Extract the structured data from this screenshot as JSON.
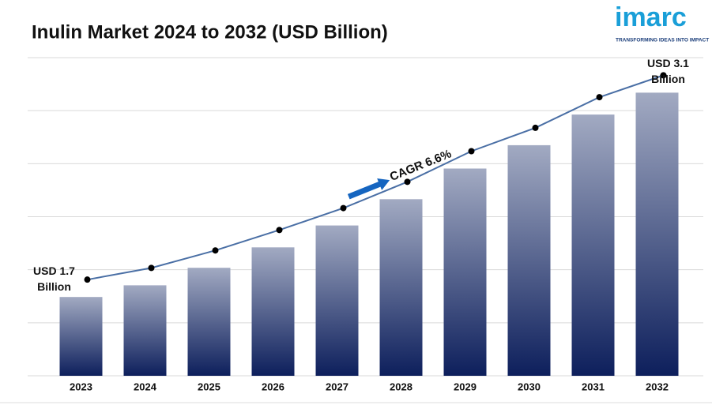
{
  "chart_data": {
    "type": "bar",
    "title": "Inulin Market 2024 to 2032 (USD Billion)",
    "categories": [
      "2023",
      "2024",
      "2025",
      "2026",
      "2027",
      "2028",
      "2029",
      "2030",
      "2031",
      "2032"
    ],
    "values": [
      1.7,
      1.78,
      1.9,
      2.04,
      2.19,
      2.37,
      2.58,
      2.74,
      2.95,
      3.1
    ],
    "color": "#0d1f5c",
    "line_color": "#4a6fa5",
    "ylim": [
      1.16,
      3.34
    ],
    "grid": true,
    "annotations": {
      "start": [
        "USD 1.7",
        "Billion"
      ],
      "end": [
        "USD 3.1",
        "Billion"
      ],
      "cagr": "CAGR 6.6%"
    }
  },
  "logo": {
    "name": "imarc",
    "tagline": "TRANSFORMING IDEAS INTO IMPACT"
  }
}
